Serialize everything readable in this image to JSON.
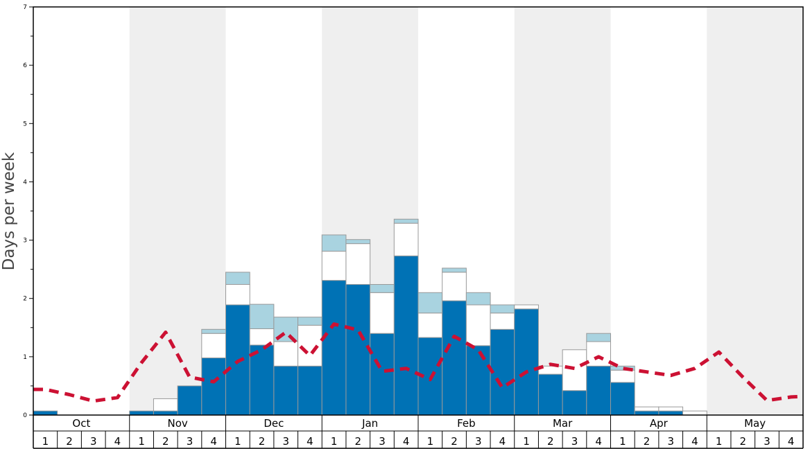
{
  "chart_data": {
    "type": "bar",
    "ylabel": "Days per week",
    "ylim": [
      0,
      7
    ],
    "y_ticks": [
      "0",
      "1",
      "2",
      "3",
      "4",
      "5",
      "6",
      "7"
    ],
    "months": [
      "Oct",
      "Nov",
      "Dec",
      "Jan",
      "Feb",
      "Mar",
      "Apr",
      "May"
    ],
    "week_labels": [
      "1",
      "2",
      "3",
      "4"
    ],
    "shaded_months": [
      "Nov",
      "Jan",
      "Mar",
      "May"
    ],
    "colors": {
      "bar_blue": "#0072b5",
      "bar_white": "#ffffff",
      "bar_lightblue": "#a9d3e0",
      "line_red": "#cc1133",
      "shade": "#efefef"
    },
    "series": [
      {
        "role": "blue",
        "values": [
          0.07,
          0,
          0,
          0,
          0.07,
          0.07,
          0.5,
          0.98,
          1.89,
          1.2,
          0.84,
          0.84,
          2.31,
          2.24,
          1.4,
          2.73,
          1.33,
          1.96,
          1.19,
          1.47,
          1.82,
          0.7,
          0.42,
          0.84,
          0.56,
          0.07,
          0.07,
          0,
          0,
          0,
          0,
          0
        ]
      },
      {
        "role": "white",
        "values": [
          0,
          0,
          0,
          0,
          0,
          0.21,
          0,
          0.42,
          0.35,
          0.28,
          0.42,
          0.7,
          0.5,
          0.7,
          0.7,
          0.56,
          0.42,
          0.49,
          0.7,
          0.28,
          0.07,
          0.14,
          0.7,
          0.42,
          0.21,
          0.07,
          0.07,
          0.07,
          0,
          0,
          0,
          0
        ]
      },
      {
        "role": "lightblue",
        "values": [
          0,
          0,
          0,
          0,
          0,
          0,
          0,
          0.07,
          0.21,
          0.42,
          0.42,
          0.14,
          0.28,
          0.07,
          0.14,
          0.07,
          0.35,
          0.07,
          0.21,
          0.14,
          0,
          0,
          0,
          0.14,
          0.07,
          0,
          0,
          0,
          0,
          0,
          0,
          0
        ]
      }
    ],
    "line": {
      "role": "red-dashed",
      "values": [
        0.44,
        0.35,
        0.24,
        0.3,
        0.9,
        1.42,
        0.65,
        0.57,
        0.92,
        1.12,
        1.42,
        1.02,
        1.56,
        1.46,
        0.75,
        0.8,
        0.61,
        1.35,
        1.12,
        0.47,
        0.74,
        0.87,
        0.8,
        1.0,
        0.8,
        0.74,
        0.68,
        0.8,
        1.08,
        0.65,
        0.25,
        0.31
      ]
    },
    "line_tail_value": 0.32,
    "grid": false
  }
}
